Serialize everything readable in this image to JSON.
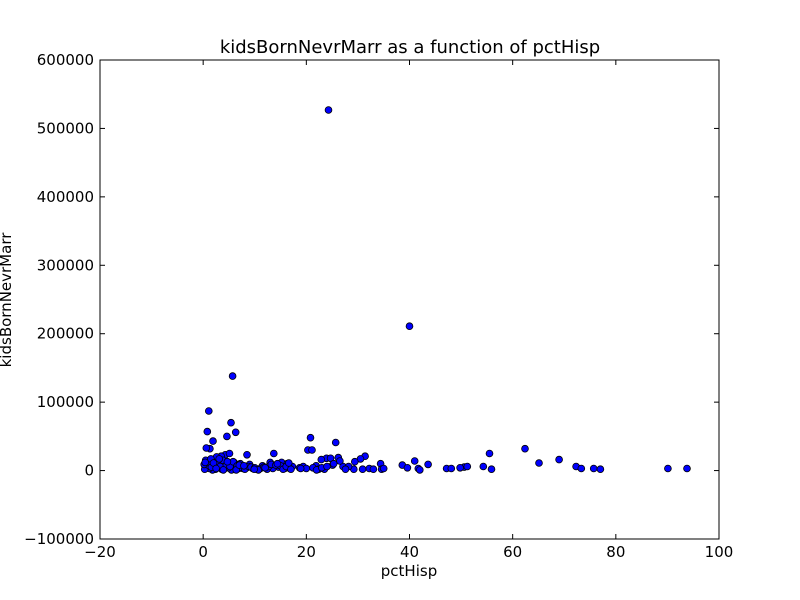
{
  "chart_data": {
    "type": "scatter",
    "title": "kidsBornNevrMarr as a function of pctHisp",
    "xlabel": "pctHisp",
    "ylabel": "kidsBornNevrMarr",
    "xlim": [
      -20,
      100
    ],
    "ylim": [
      -100000,
      600000
    ],
    "x_ticks": [
      -20,
      0,
      20,
      40,
      60,
      80,
      100
    ],
    "y_ticks": [
      -100000,
      0,
      100000,
      200000,
      300000,
      400000,
      500000,
      600000
    ],
    "x_tick_labels": [
      "−20",
      "0",
      "20",
      "40",
      "60",
      "80",
      "100"
    ],
    "y_tick_labels": [
      "−100000",
      "0",
      "100000",
      "200000",
      "300000",
      "400000",
      "500000",
      "600000"
    ],
    "grid": false,
    "legend": "none",
    "marker_color": "#0000ff",
    "marker_edge": "#000000",
    "points": [
      [
        24.3,
        527000
      ],
      [
        40.0,
        211000
      ],
      [
        5.7,
        138000
      ],
      [
        1.1,
        87000
      ],
      [
        5.4,
        70000
      ],
      [
        0.8,
        57000
      ],
      [
        6.3,
        56000
      ],
      [
        4.6,
        50000
      ],
      [
        20.8,
        48000
      ],
      [
        1.9,
        43000
      ],
      [
        25.7,
        41000
      ],
      [
        62.4,
        32000
      ],
      [
        1.3,
        32000
      ],
      [
        0.6,
        33000
      ],
      [
        20.3,
        30000
      ],
      [
        21.1,
        30000
      ],
      [
        55.5,
        25000
      ],
      [
        13.7,
        25000
      ],
      [
        8.5,
        23000
      ],
      [
        4.3,
        23000
      ],
      [
        5.1,
        25000
      ],
      [
        3.5,
        21000
      ],
      [
        2.6,
        20000
      ],
      [
        26.2,
        19000
      ],
      [
        31.4,
        21000
      ],
      [
        23.9,
        18000
      ],
      [
        24.7,
        18000
      ],
      [
        30.5,
        17000
      ],
      [
        69.0,
        16000
      ],
      [
        22.9,
        16000
      ],
      [
        29.4,
        13000
      ],
      [
        41.0,
        14000
      ],
      [
        65.1,
        11000
      ],
      [
        13.0,
        12000
      ],
      [
        15.2,
        12000
      ],
      [
        0.5,
        15000
      ],
      [
        1.7,
        14000
      ],
      [
        6.0,
        12000
      ],
      [
        7.2,
        10000
      ],
      [
        3.0,
        12000
      ],
      [
        4.0,
        11000
      ],
      [
        9.0,
        9000
      ],
      [
        11.5,
        7000
      ],
      [
        16.3,
        10000
      ],
      [
        17.3,
        6000
      ],
      [
        19.4,
        6000
      ],
      [
        21.9,
        7000
      ],
      [
        25.1,
        8000
      ],
      [
        27.1,
        6000
      ],
      [
        34.4,
        10000
      ],
      [
        38.6,
        8000
      ],
      [
        43.6,
        9000
      ],
      [
        54.3,
        6000
      ],
      [
        50.6,
        5000
      ],
      [
        51.2,
        6000
      ],
      [
        72.3,
        6000
      ],
      [
        73.3,
        3000
      ],
      [
        75.7,
        3000
      ],
      [
        77.0,
        2000
      ],
      [
        90.1,
        3000
      ],
      [
        93.8,
        3000
      ],
      [
        47.2,
        3000
      ],
      [
        48.1,
        3000
      ],
      [
        41.7,
        3000
      ],
      [
        42.0,
        1000
      ],
      [
        39.6,
        4000
      ],
      [
        34.6,
        2000
      ],
      [
        32.2,
        3000
      ],
      [
        30.9,
        2000
      ],
      [
        29.2,
        2000
      ],
      [
        28.2,
        6000
      ],
      [
        23.5,
        2000
      ],
      [
        22.4,
        2000
      ],
      [
        20.0,
        3000
      ],
      [
        18.7,
        4000
      ],
      [
        16.8,
        3000
      ],
      [
        15.8,
        3000
      ],
      [
        14.6,
        5000
      ],
      [
        13.5,
        3000
      ],
      [
        12.4,
        2000
      ],
      [
        11.1,
        3000
      ],
      [
        10.4,
        2000
      ],
      [
        9.6,
        3000
      ],
      [
        8.4,
        4000
      ],
      [
        7.7,
        3000
      ],
      [
        6.9,
        3000
      ],
      [
        6.1,
        2000
      ],
      [
        5.5,
        1000
      ],
      [
        4.9,
        4000
      ],
      [
        4.2,
        3000
      ],
      [
        3.6,
        2000
      ],
      [
        3.0,
        5000
      ],
      [
        2.4,
        2000
      ],
      [
        1.8,
        1000
      ],
      [
        1.2,
        3000
      ],
      [
        0.9,
        6000
      ],
      [
        0.5,
        4000
      ],
      [
        0.3,
        2000
      ],
      [
        0.7,
        10000
      ],
      [
        1.0,
        8000
      ],
      [
        1.5,
        17000
      ],
      [
        2.2,
        7000
      ],
      [
        2.8,
        9000
      ],
      [
        3.3,
        6000
      ],
      [
        3.8,
        15000
      ],
      [
        4.5,
        8000
      ],
      [
        5.2,
        6000
      ],
      [
        5.8,
        13000
      ],
      [
        6.6,
        7000
      ],
      [
        7.4,
        5000
      ],
      [
        8.1,
        2000
      ],
      [
        8.8,
        6000
      ],
      [
        9.3,
        5000
      ],
      [
        10.0,
        4000
      ],
      [
        10.7,
        1000
      ],
      [
        11.8,
        5000
      ],
      [
        12.7,
        6000
      ],
      [
        13.2,
        9000
      ],
      [
        14.1,
        8000
      ],
      [
        15.0,
        7000
      ],
      [
        15.5,
        2000
      ],
      [
        16.1,
        6000
      ],
      [
        17.0,
        2000
      ],
      [
        21.3,
        4000
      ],
      [
        22.0,
        1000
      ],
      [
        23.0,
        4000
      ],
      [
        24.0,
        6000
      ],
      [
        26.5,
        14000
      ],
      [
        27.6,
        2000
      ],
      [
        33.0,
        2000
      ],
      [
        35.0,
        3000
      ],
      [
        49.8,
        4000
      ],
      [
        55.9,
        2000
      ],
      [
        0.2,
        9000
      ],
      [
        0.4,
        12000
      ],
      [
        1.6,
        5000
      ],
      [
        2.0,
        11000
      ],
      [
        2.5,
        3000
      ],
      [
        3.1,
        17000
      ],
      [
        3.9,
        1000
      ],
      [
        4.7,
        13000
      ],
      [
        6.4,
        1000
      ],
      [
        7.0,
        8000
      ],
      [
        7.9,
        7000
      ],
      [
        9.9,
        2000
      ],
      [
        12.0,
        4000
      ],
      [
        14.4,
        10000
      ],
      [
        16.6,
        11000
      ],
      [
        18.9,
        3000
      ],
      [
        25.3,
        10000
      ]
    ]
  }
}
